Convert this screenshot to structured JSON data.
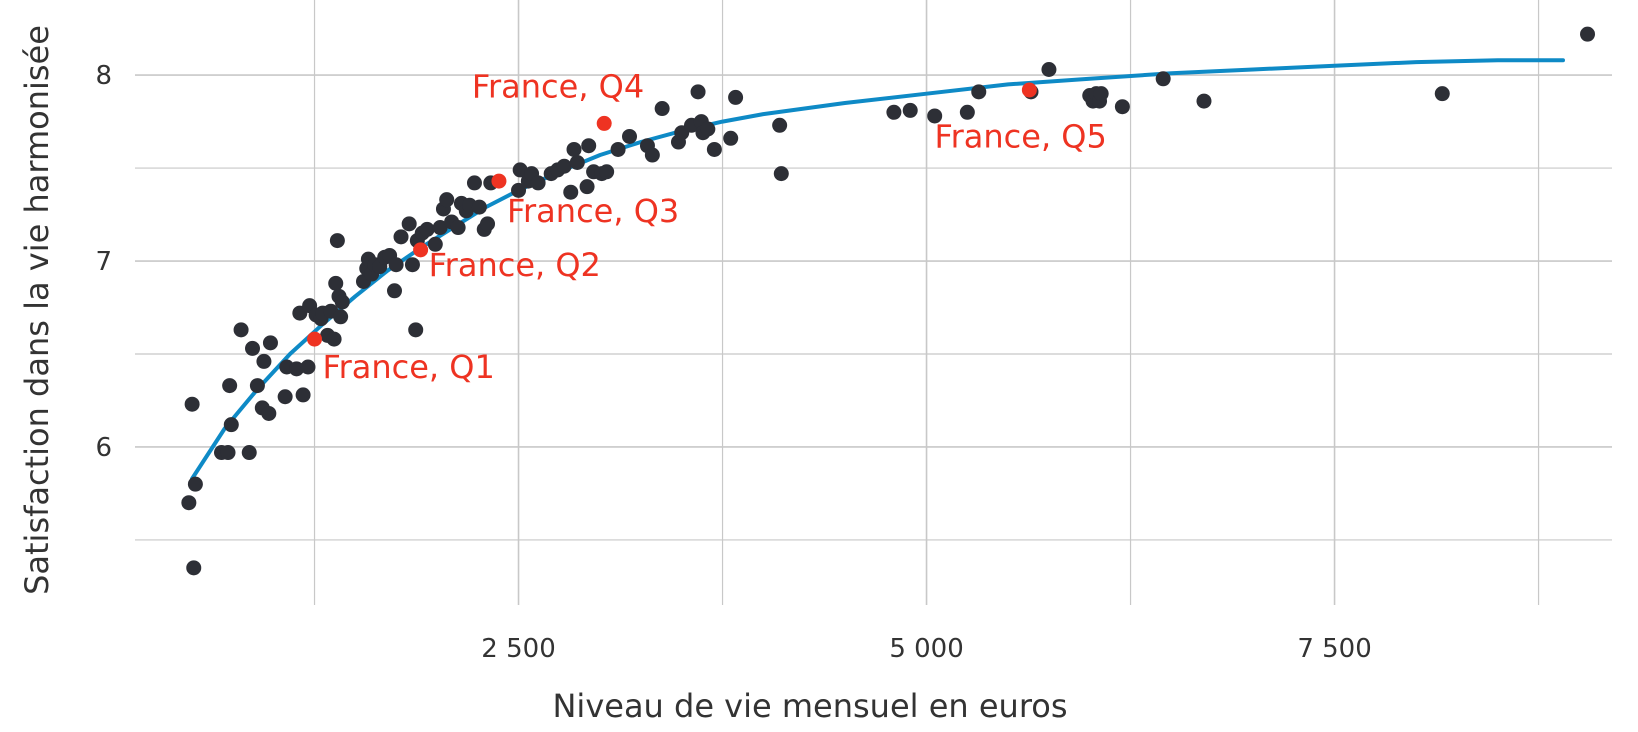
{
  "chart_data": {
    "type": "scatter",
    "title": "",
    "xlabel": "Niveau de vie mensuel en euros",
    "ylabel": "Satisfaction dans la vie harmonisée",
    "xlim": [
      150,
      9200
    ],
    "ylim": [
      5.15,
      8.35
    ],
    "x_ticks": [
      {
        "value": 2500,
        "label": "2 500"
      },
      {
        "value": 5000,
        "label": "5 000"
      },
      {
        "value": 7500,
        "label": "7 500"
      }
    ],
    "x_minor_grid": [
      1250,
      3750,
      6250,
      8750
    ],
    "y_ticks": [
      {
        "value": 6,
        "label": "6"
      },
      {
        "value": 7,
        "label": "7"
      },
      {
        "value": 8,
        "label": "8"
      }
    ],
    "y_minor_grid": [
      5.5,
      6.5,
      7.5
    ],
    "grid": true,
    "colors": {
      "points": "#2d2f36",
      "fit": "#0e8ac6",
      "highlight": "#ee3322",
      "grid": "#c8c8c8",
      "text": "#333333"
    },
    "fit_curve": {
      "x": [
        500,
        700,
        900,
        1100,
        1300,
        1500,
        1700,
        1900,
        2100,
        2300,
        2500,
        2750,
        3000,
        3250,
        3500,
        3750,
        4000,
        4500,
        5000,
        5500,
        6000,
        6500,
        7000,
        7500,
        8000,
        8500,
        8900
      ],
      "y": [
        5.83,
        6.1,
        6.31,
        6.5,
        6.66,
        6.81,
        6.95,
        7.07,
        7.18,
        7.29,
        7.38,
        7.48,
        7.57,
        7.64,
        7.7,
        7.75,
        7.79,
        7.85,
        7.9,
        7.95,
        7.98,
        8.01,
        8.03,
        8.05,
        8.07,
        8.08,
        8.08
      ]
    },
    "points": [
      {
        "x": 480,
        "y": 5.7
      },
      {
        "x": 510,
        "y": 5.35
      },
      {
        "x": 500,
        "y": 6.23
      },
      {
        "x": 520,
        "y": 5.8
      },
      {
        "x": 680,
        "y": 5.97
      },
      {
        "x": 720,
        "y": 5.97
      },
      {
        "x": 740,
        "y": 6.12
      },
      {
        "x": 730,
        "y": 6.33
      },
      {
        "x": 800,
        "y": 6.63
      },
      {
        "x": 850,
        "y": 5.97
      },
      {
        "x": 870,
        "y": 6.53
      },
      {
        "x": 900,
        "y": 6.33
      },
      {
        "x": 930,
        "y": 6.21
      },
      {
        "x": 940,
        "y": 6.46
      },
      {
        "x": 970,
        "y": 6.18
      },
      {
        "x": 980,
        "y": 6.56
      },
      {
        "x": 1070,
        "y": 6.27
      },
      {
        "x": 1080,
        "y": 6.43
      },
      {
        "x": 1140,
        "y": 6.42
      },
      {
        "x": 1180,
        "y": 6.28
      },
      {
        "x": 1210,
        "y": 6.43
      },
      {
        "x": 1160,
        "y": 6.72
      },
      {
        "x": 1220,
        "y": 6.76
      },
      {
        "x": 1260,
        "y": 6.71
      },
      {
        "x": 1290,
        "y": 6.69
      },
      {
        "x": 1300,
        "y": 6.72
      },
      {
        "x": 1330,
        "y": 6.6
      },
      {
        "x": 1350,
        "y": 6.73
      },
      {
        "x": 1370,
        "y": 6.58
      },
      {
        "x": 1380,
        "y": 6.88
      },
      {
        "x": 1400,
        "y": 6.81
      },
      {
        "x": 1410,
        "y": 6.7
      },
      {
        "x": 1420,
        "y": 6.78
      },
      {
        "x": 1390,
        "y": 7.11
      },
      {
        "x": 1550,
        "y": 6.89
      },
      {
        "x": 1570,
        "y": 6.96
      },
      {
        "x": 1580,
        "y": 7.01
      },
      {
        "x": 1600,
        "y": 6.93
      },
      {
        "x": 1620,
        "y": 6.98
      },
      {
        "x": 1650,
        "y": 6.97
      },
      {
        "x": 1680,
        "y": 7.02
      },
      {
        "x": 1710,
        "y": 7.03
      },
      {
        "x": 1740,
        "y": 6.84
      },
      {
        "x": 1750,
        "y": 6.98
      },
      {
        "x": 1780,
        "y": 7.13
      },
      {
        "x": 1830,
        "y": 7.2
      },
      {
        "x": 1850,
        "y": 6.98
      },
      {
        "x": 1870,
        "y": 6.63
      },
      {
        "x": 1880,
        "y": 7.11
      },
      {
        "x": 1910,
        "y": 7.15
      },
      {
        "x": 1940,
        "y": 7.17
      },
      {
        "x": 1990,
        "y": 7.09
      },
      {
        "x": 2020,
        "y": 7.18
      },
      {
        "x": 2040,
        "y": 7.28
      },
      {
        "x": 2060,
        "y": 7.33
      },
      {
        "x": 2090,
        "y": 7.21
      },
      {
        "x": 2130,
        "y": 7.18
      },
      {
        "x": 2150,
        "y": 7.31
      },
      {
        "x": 2180,
        "y": 7.27
      },
      {
        "x": 2200,
        "y": 7.3
      },
      {
        "x": 2230,
        "y": 7.42
      },
      {
        "x": 2260,
        "y": 7.29
      },
      {
        "x": 2290,
        "y": 7.17
      },
      {
        "x": 2310,
        "y": 7.2
      },
      {
        "x": 2330,
        "y": 7.42
      },
      {
        "x": 2500,
        "y": 7.38
      },
      {
        "x": 2510,
        "y": 7.49
      },
      {
        "x": 2560,
        "y": 7.43
      },
      {
        "x": 2580,
        "y": 7.47
      },
      {
        "x": 2620,
        "y": 7.42
      },
      {
        "x": 2700,
        "y": 7.47
      },
      {
        "x": 2740,
        "y": 7.49
      },
      {
        "x": 2780,
        "y": 7.51
      },
      {
        "x": 2820,
        "y": 7.37
      },
      {
        "x": 2840,
        "y": 7.6
      },
      {
        "x": 2860,
        "y": 7.53
      },
      {
        "x": 2920,
        "y": 7.4
      },
      {
        "x": 2930,
        "y": 7.62
      },
      {
        "x": 2960,
        "y": 7.48
      },
      {
        "x": 3010,
        "y": 7.47
      },
      {
        "x": 3040,
        "y": 7.48
      },
      {
        "x": 3110,
        "y": 7.6
      },
      {
        "x": 3180,
        "y": 7.67
      },
      {
        "x": 3290,
        "y": 7.62
      },
      {
        "x": 3320,
        "y": 7.57
      },
      {
        "x": 3380,
        "y": 7.82
      },
      {
        "x": 3480,
        "y": 7.64
      },
      {
        "x": 3500,
        "y": 7.69
      },
      {
        "x": 3560,
        "y": 7.73
      },
      {
        "x": 3600,
        "y": 7.91
      },
      {
        "x": 3620,
        "y": 7.75
      },
      {
        "x": 3630,
        "y": 7.69
      },
      {
        "x": 3660,
        "y": 7.71
      },
      {
        "x": 3700,
        "y": 7.6
      },
      {
        "x": 3800,
        "y": 7.66
      },
      {
        "x": 3830,
        "y": 7.88
      },
      {
        "x": 4100,
        "y": 7.73
      },
      {
        "x": 4110,
        "y": 7.47
      },
      {
        "x": 4800,
        "y": 7.8
      },
      {
        "x": 4900,
        "y": 7.81
      },
      {
        "x": 5050,
        "y": 7.78
      },
      {
        "x": 5250,
        "y": 7.8
      },
      {
        "x": 5320,
        "y": 7.91
      },
      {
        "x": 5640,
        "y": 7.91
      },
      {
        "x": 5750,
        "y": 8.03
      },
      {
        "x": 6000,
        "y": 7.89
      },
      {
        "x": 6020,
        "y": 7.86
      },
      {
        "x": 6040,
        "y": 7.9
      },
      {
        "x": 6060,
        "y": 7.86
      },
      {
        "x": 6070,
        "y": 7.9
      },
      {
        "x": 6200,
        "y": 7.83
      },
      {
        "x": 6450,
        "y": 7.98
      },
      {
        "x": 6700,
        "y": 7.86
      },
      {
        "x": 8160,
        "y": 7.9
      },
      {
        "x": 9050,
        "y": 8.22
      }
    ],
    "highlighted": [
      {
        "label": "France, Q1",
        "x": 1250,
        "y": 6.58,
        "label_x": 1250,
        "label_y": 6.37,
        "anchor": "start"
      },
      {
        "label": "France, Q2",
        "x": 1900,
        "y": 7.06,
        "label_x": 1900,
        "label_y": 6.92,
        "anchor": "start"
      },
      {
        "label": "France, Q3",
        "x": 2380,
        "y": 7.43,
        "label_x": 2380,
        "label_y": 7.21,
        "anchor": "start"
      },
      {
        "label": "France, Q4",
        "x": 3025,
        "y": 7.74,
        "label_x": 3025,
        "label_y": 7.88,
        "anchor": "end"
      },
      {
        "label": "France, Q5",
        "x": 5630,
        "y": 7.92,
        "label_x": 5000,
        "label_y": 7.61,
        "anchor": "start"
      }
    ]
  }
}
